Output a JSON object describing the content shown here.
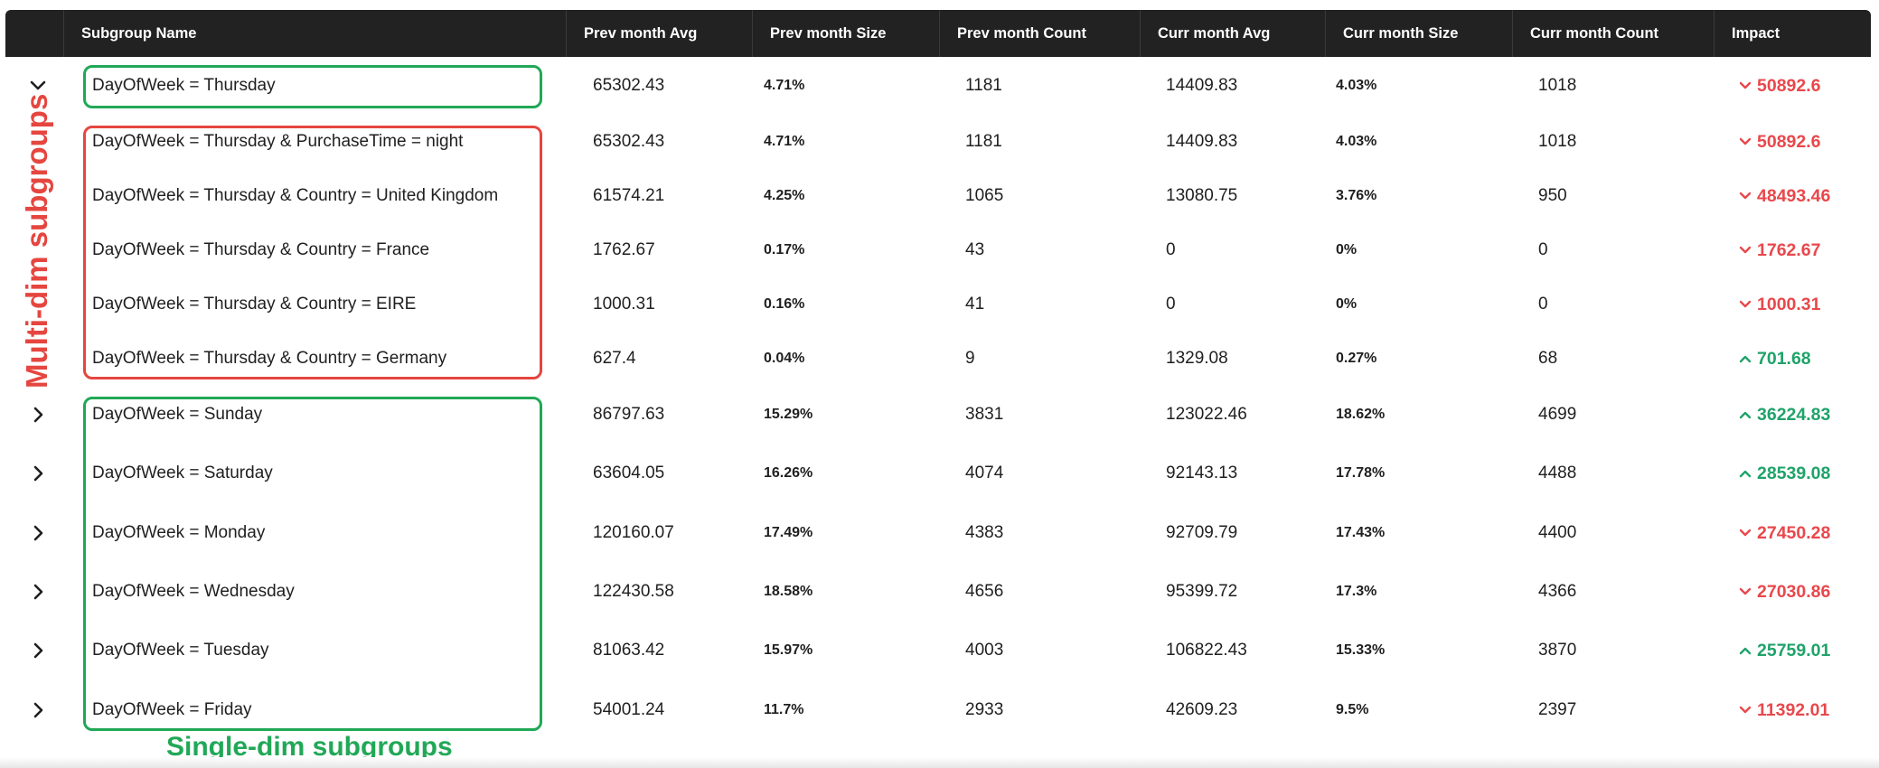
{
  "columns": [
    "",
    "Subgroup Name",
    "Prev month Avg",
    "Prev month Size",
    "Prev month Count",
    "Curr month Avg",
    "Curr month Size",
    "Curr month Count",
    "Impact"
  ],
  "rows": [
    {
      "expander": "chevron-down",
      "name": "DayOfWeek = Thursday",
      "prev_avg": "65302.43",
      "prev_size": "4.71%",
      "prev_count": "1181",
      "curr_avg": "14409.83",
      "curr_size": "4.03%",
      "curr_count": "1018",
      "impact": "50892.6",
      "direction": "down"
    },
    {
      "expander": "",
      "name": "DayOfWeek = Thursday & PurchaseTime = night",
      "prev_avg": "65302.43",
      "prev_size": "4.71%",
      "prev_count": "1181",
      "curr_avg": "14409.83",
      "curr_size": "4.03%",
      "curr_count": "1018",
      "impact": "50892.6",
      "direction": "down"
    },
    {
      "expander": "",
      "name": "DayOfWeek = Thursday & Country = United Kingdom",
      "prev_avg": "61574.21",
      "prev_size": "4.25%",
      "prev_count": "1065",
      "curr_avg": "13080.75",
      "curr_size": "3.76%",
      "curr_count": "950",
      "impact": "48493.46",
      "direction": "down"
    },
    {
      "expander": "",
      "name": "DayOfWeek = Thursday & Country = France",
      "prev_avg": "1762.67",
      "prev_size": "0.17%",
      "prev_count": "43",
      "curr_avg": "0",
      "curr_size": "0%",
      "curr_count": "0",
      "impact": "1762.67",
      "direction": "down"
    },
    {
      "expander": "",
      "name": "DayOfWeek = Thursday & Country = EIRE",
      "prev_avg": "1000.31",
      "prev_size": "0.16%",
      "prev_count": "41",
      "curr_avg": "0",
      "curr_size": "0%",
      "curr_count": "0",
      "impact": "1000.31",
      "direction": "down"
    },
    {
      "expander": "",
      "name": "DayOfWeek = Thursday & Country = Germany",
      "prev_avg": "627.4",
      "prev_size": "0.04%",
      "prev_count": "9",
      "curr_avg": "1329.08",
      "curr_size": "0.27%",
      "curr_count": "68",
      "impact": "701.68",
      "direction": "up"
    },
    {
      "expander": "chevron-right",
      "name": "DayOfWeek = Sunday",
      "prev_avg": "86797.63",
      "prev_size": "15.29%",
      "prev_count": "3831",
      "curr_avg": "123022.46",
      "curr_size": "18.62%",
      "curr_count": "4699",
      "impact": "36224.83",
      "direction": "up"
    },
    {
      "expander": "chevron-right",
      "name": "DayOfWeek = Saturday",
      "prev_avg": "63604.05",
      "prev_size": "16.26%",
      "prev_count": "4074",
      "curr_avg": "92143.13",
      "curr_size": "17.78%",
      "curr_count": "4488",
      "impact": "28539.08",
      "direction": "up"
    },
    {
      "expander": "chevron-right",
      "name": "DayOfWeek = Monday",
      "prev_avg": "120160.07",
      "prev_size": "17.49%",
      "prev_count": "4383",
      "curr_avg": "92709.79",
      "curr_size": "17.43%",
      "curr_count": "4400",
      "impact": "27450.28",
      "direction": "down"
    },
    {
      "expander": "chevron-right",
      "name": "DayOfWeek = Wednesday",
      "prev_avg": "122430.58",
      "prev_size": "18.58%",
      "prev_count": "4656",
      "curr_avg": "95399.72",
      "curr_size": "17.3%",
      "curr_count": "4366",
      "impact": "27030.86",
      "direction": "down"
    },
    {
      "expander": "chevron-right",
      "name": "DayOfWeek = Tuesday",
      "prev_avg": "81063.42",
      "prev_size": "15.97%",
      "prev_count": "4003",
      "curr_avg": "106822.43",
      "curr_size": "15.33%",
      "curr_count": "3870",
      "impact": "25759.01",
      "direction": "up"
    },
    {
      "expander": "chevron-right",
      "name": "DayOfWeek = Friday",
      "prev_avg": "54001.24",
      "prev_size": "11.7%",
      "prev_count": "2933",
      "curr_avg": "42609.23",
      "curr_size": "9.5%",
      "curr_count": "2397",
      "impact": "11392.01",
      "direction": "down"
    }
  ],
  "annotations": {
    "multi_dim": "Multi-dim subgroups",
    "single_dim": "Single-dim subgroups"
  },
  "colors": {
    "header_bg": "#222222",
    "impact_down": "#e8484c",
    "impact_up": "#1fa36a",
    "annotation_green": "#21a857",
    "annotation_red": "#e5463f"
  }
}
